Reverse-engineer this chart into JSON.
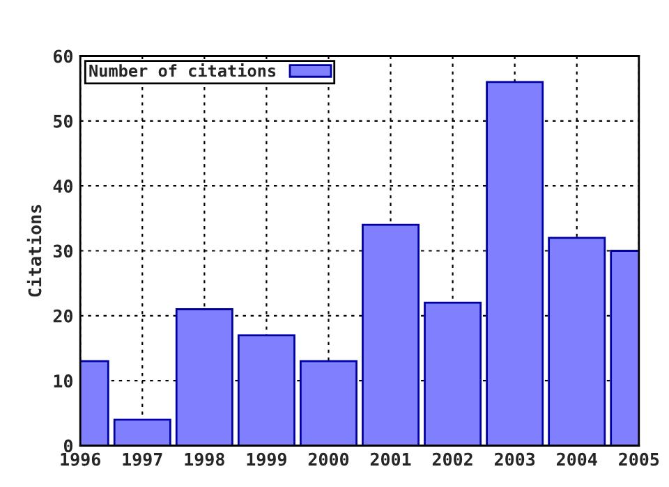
{
  "chart_data": {
    "type": "bar",
    "ylabel": "Citations",
    "x": [
      1996,
      1997,
      1998,
      1999,
      2000,
      2001,
      2002,
      2003,
      2004,
      2005
    ],
    "series": [
      {
        "name": "Number of citations",
        "color": "#8080ff",
        "values": [
          13,
          4,
          21,
          17,
          13,
          34,
          22,
          56,
          32,
          30
        ]
      }
    ],
    "xlim": [
      1996,
      2005
    ],
    "xticks": [
      1996,
      1997,
      1998,
      1999,
      2000,
      2001,
      2002,
      2003,
      2004,
      2005
    ],
    "ylim": [
      0,
      60
    ],
    "yticks": [
      0,
      10,
      20,
      30,
      40,
      50,
      60
    ],
    "grid": true,
    "legend": "top left"
  }
}
